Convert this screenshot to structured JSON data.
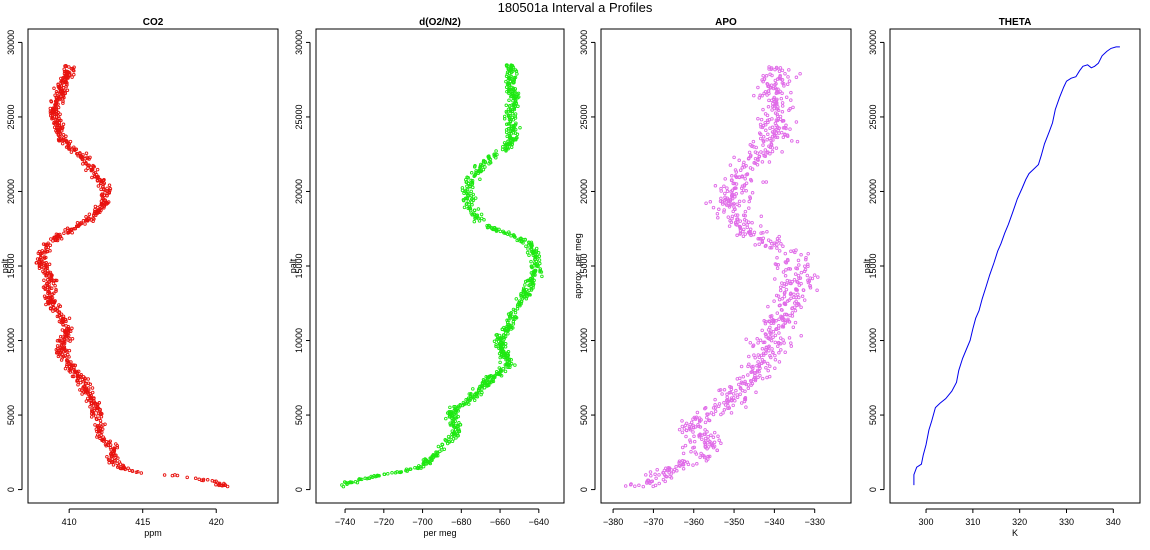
{
  "figure": {
    "title": "180501a   Interval a Profiles"
  },
  "chart_data": [
    {
      "type": "scatter",
      "title": "CO2",
      "xlabel": "ppm",
      "ylabel": "palt",
      "xlim": [
        407.2,
        424.2
      ],
      "ylim": [
        -900,
        30900
      ],
      "xticks": [
        410,
        415,
        420
      ],
      "yticks": [
        0,
        5000,
        10000,
        15000,
        20000,
        25000,
        30000
      ],
      "color": "#e8130f",
      "profile": [
        [
          0,
          421.0
        ],
        [
          300,
          420.5
        ],
        [
          600,
          419.5
        ],
        [
          900,
          417.5
        ],
        [
          1200,
          414.5
        ],
        [
          1500,
          413.5
        ],
        [
          2000,
          413.0
        ],
        [
          2500,
          413.0
        ],
        [
          3000,
          412.8
        ],
        [
          3500,
          412.2
        ],
        [
          4000,
          412.0
        ],
        [
          4500,
          412.0
        ],
        [
          5000,
          411.8
        ],
        [
          5500,
          411.8
        ],
        [
          6000,
          411.5
        ],
        [
          6500,
          411.2
        ],
        [
          7000,
          411.0
        ],
        [
          7500,
          410.8
        ],
        [
          8000,
          410.3
        ],
        [
          8500,
          409.8
        ],
        [
          9000,
          409.6
        ],
        [
          9500,
          409.5
        ],
        [
          10000,
          409.6
        ],
        [
          10500,
          409.9
        ],
        [
          11000,
          409.8
        ],
        [
          11500,
          409.5
        ],
        [
          12000,
          409.0
        ],
        [
          12500,
          408.8
        ],
        [
          13000,
          408.7
        ],
        [
          13500,
          408.6
        ],
        [
          14000,
          408.8
        ],
        [
          14500,
          408.5
        ],
        [
          15000,
          408.2
        ],
        [
          15500,
          408.0
        ],
        [
          16000,
          408.3
        ],
        [
          16500,
          408.6
        ],
        [
          17000,
          409.3
        ],
        [
          17500,
          410.3
        ],
        [
          18000,
          411.2
        ],
        [
          18500,
          411.7
        ],
        [
          19000,
          412.2
        ],
        [
          19500,
          412.5
        ],
        [
          20000,
          412.5
        ],
        [
          20500,
          412.3
        ],
        [
          21000,
          412.0
        ],
        [
          21500,
          411.6
        ],
        [
          22000,
          411.3
        ],
        [
          22500,
          410.8
        ],
        [
          23000,
          410.0
        ],
        [
          23500,
          409.6
        ],
        [
          24000,
          409.4
        ],
        [
          24500,
          409.3
        ],
        [
          25000,
          409.1
        ],
        [
          25500,
          409.0
        ],
        [
          26000,
          409.2
        ],
        [
          26500,
          409.5
        ],
        [
          27000,
          409.5
        ],
        [
          27500,
          409.7
        ],
        [
          28000,
          409.9
        ],
        [
          28400,
          410.0
        ]
      ],
      "noise": 0.4
    },
    {
      "type": "scatter",
      "title": "d(O2/N2)",
      "xlabel": "per meg",
      "ylabel": "palt",
      "xlim": [
        -755,
        -627
      ],
      "ylim": [
        -900,
        30900
      ],
      "xticks": [
        -740,
        -720,
        -700,
        -680,
        -660,
        -640
      ],
      "yticks": [
        0,
        5000,
        10000,
        15000,
        20000,
        25000,
        30000
      ],
      "color": "#1ee812",
      "profile": [
        [
          0,
          -742
        ],
        [
          300,
          -740
        ],
        [
          600,
          -735
        ],
        [
          900,
          -725
        ],
        [
          1200,
          -712
        ],
        [
          1500,
          -701
        ],
        [
          2000,
          -697
        ],
        [
          2500,
          -692
        ],
        [
          3000,
          -688
        ],
        [
          3500,
          -684
        ],
        [
          4000,
          -682
        ],
        [
          4500,
          -684
        ],
        [
          5000,
          -686
        ],
        [
          5500,
          -682
        ],
        [
          6000,
          -676
        ],
        [
          6500,
          -672
        ],
        [
          7000,
          -668
        ],
        [
          7500,
          -664
        ],
        [
          8000,
          -659
        ],
        [
          8500,
          -656
        ],
        [
          9000,
          -657
        ],
        [
          9500,
          -659
        ],
        [
          10000,
          -660
        ],
        [
          10500,
          -658
        ],
        [
          11000,
          -655
        ],
        [
          11500,
          -653
        ],
        [
          12000,
          -652
        ],
        [
          12500,
          -650
        ],
        [
          13000,
          -648
        ],
        [
          13500,
          -646
        ],
        [
          14000,
          -644
        ],
        [
          14500,
          -642
        ],
        [
          15000,
          -641
        ],
        [
          15500,
          -641
        ],
        [
          16000,
          -643
        ],
        [
          16500,
          -645
        ],
        [
          17000,
          -652
        ],
        [
          17500,
          -664
        ],
        [
          18000,
          -670
        ],
        [
          18500,
          -673
        ],
        [
          19000,
          -676
        ],
        [
          19500,
          -677
        ],
        [
          20000,
          -677
        ],
        [
          20500,
          -676
        ],
        [
          21000,
          -674
        ],
        [
          21500,
          -671
        ],
        [
          22000,
          -667
        ],
        [
          22500,
          -662
        ],
        [
          23000,
          -656
        ],
        [
          23500,
          -654
        ],
        [
          24000,
          -653
        ],
        [
          24500,
          -654
        ],
        [
          25000,
          -655
        ],
        [
          25500,
          -654
        ],
        [
          26000,
          -652
        ],
        [
          26500,
          -653
        ],
        [
          27000,
          -655
        ],
        [
          27500,
          -654
        ],
        [
          28000,
          -654
        ],
        [
          28400,
          -655
        ]
      ],
      "noise": 3
    },
    {
      "type": "scatter",
      "title": "APO",
      "xlabel": "",
      "ylabel": "approx. per meg",
      "xlim": [
        -383,
        -321
      ],
      "ylim": [
        -900,
        30900
      ],
      "xticks": [
        -380,
        -370,
        -360,
        -350,
        -340,
        -330
      ],
      "yticks": [
        0,
        5000,
        10000,
        15000,
        20000,
        25000,
        30000
      ],
      "color": "#e06be8",
      "profile": [
        [
          0,
          -374
        ],
        [
          500,
          -370
        ],
        [
          1000,
          -368
        ],
        [
          1500,
          -364
        ],
        [
          2000,
          -360
        ],
        [
          2500,
          -358
        ],
        [
          3000,
          -357
        ],
        [
          3500,
          -358
        ],
        [
          4000,
          -361
        ],
        [
          4500,
          -360
        ],
        [
          5000,
          -357
        ],
        [
          5500,
          -353
        ],
        [
          6000,
          -351
        ],
        [
          6500,
          -349
        ],
        [
          7000,
          -348
        ],
        [
          7500,
          -345
        ],
        [
          8000,
          -344
        ],
        [
          8500,
          -344
        ],
        [
          9000,
          -342
        ],
        [
          9500,
          -341
        ],
        [
          10000,
          -341
        ],
        [
          10500,
          -340
        ],
        [
          11000,
          -339
        ],
        [
          11500,
          -338
        ],
        [
          12000,
          -337
        ],
        [
          12500,
          -336
        ],
        [
          13000,
          -336
        ],
        [
          13500,
          -335
        ],
        [
          14000,
          -335
        ],
        [
          14500,
          -334
        ],
        [
          15000,
          -335
        ],
        [
          15500,
          -336
        ],
        [
          16000,
          -337
        ],
        [
          16500,
          -340
        ],
        [
          17000,
          -344
        ],
        [
          17500,
          -347
        ],
        [
          18000,
          -349
        ],
        [
          18500,
          -350
        ],
        [
          19000,
          -351
        ],
        [
          19500,
          -351
        ],
        [
          20000,
          -350
        ],
        [
          20500,
          -349
        ],
        [
          21000,
          -348
        ],
        [
          21500,
          -347
        ],
        [
          22000,
          -346
        ],
        [
          22500,
          -344
        ],
        [
          23000,
          -342
        ],
        [
          23500,
          -340
        ],
        [
          24000,
          -340
        ],
        [
          24500,
          -340
        ],
        [
          25000,
          -340
        ],
        [
          25500,
          -339
        ],
        [
          26000,
          -340
        ],
        [
          26500,
          -340
        ],
        [
          27000,
          -340
        ],
        [
          27500,
          -339
        ],
        [
          28000,
          -339
        ],
        [
          28400,
          -339
        ]
      ],
      "noise": 4.5
    },
    {
      "type": "line",
      "title": "THETA",
      "xlabel": "K",
      "ylabel": "palt",
      "xlim": [
        292.3,
        345.7
      ],
      "ylim": [
        -900,
        30900
      ],
      "xticks": [
        300,
        310,
        320,
        330,
        340
      ],
      "yticks": [
        0,
        5000,
        10000,
        15000,
        20000,
        25000,
        30000
      ],
      "color": "#0000ee",
      "points": [
        [
          297.4,
          300
        ],
        [
          297.4,
          1000
        ],
        [
          298.0,
          1500
        ],
        [
          299.0,
          1700
        ],
        [
          299.4,
          2300
        ],
        [
          300.0,
          3000
        ],
        [
          300.6,
          4000
        ],
        [
          301.2,
          4600
        ],
        [
          302.0,
          5500
        ],
        [
          303.0,
          5800
        ],
        [
          304.2,
          6100
        ],
        [
          305.5,
          6600
        ],
        [
          306.5,
          7200
        ],
        [
          307.0,
          8000
        ],
        [
          307.8,
          8800
        ],
        [
          308.6,
          9400
        ],
        [
          309.4,
          10000
        ],
        [
          310.0,
          10800
        ],
        [
          310.6,
          11500
        ],
        [
          311.3,
          12000
        ],
        [
          312.0,
          12800
        ],
        [
          312.8,
          13600
        ],
        [
          313.6,
          14400
        ],
        [
          314.5,
          15200
        ],
        [
          315.3,
          16000
        ],
        [
          316.0,
          16500
        ],
        [
          316.8,
          17200
        ],
        [
          317.6,
          17800
        ],
        [
          318.5,
          18600
        ],
        [
          319.5,
          19500
        ],
        [
          320.5,
          20200
        ],
        [
          321.3,
          20800
        ],
        [
          322.0,
          21200
        ],
        [
          323.0,
          21500
        ],
        [
          324.0,
          21800
        ],
        [
          324.6,
          22400
        ],
        [
          325.3,
          23200
        ],
        [
          326.3,
          24000
        ],
        [
          327.0,
          24600
        ],
        [
          327.6,
          25500
        ],
        [
          328.5,
          26300
        ],
        [
          329.4,
          27000
        ],
        [
          330.0,
          27400
        ],
        [
          331.0,
          27600
        ],
        [
          332.0,
          27700
        ],
        [
          332.8,
          28100
        ],
        [
          333.5,
          28400
        ],
        [
          334.5,
          28500
        ],
        [
          335.3,
          28300
        ],
        [
          336.0,
          28400
        ],
        [
          336.8,
          28600
        ],
        [
          337.6,
          29100
        ],
        [
          338.6,
          29400
        ],
        [
          339.5,
          29600
        ],
        [
          340.6,
          29700
        ],
        [
          341.4,
          29700
        ]
      ]
    }
  ]
}
